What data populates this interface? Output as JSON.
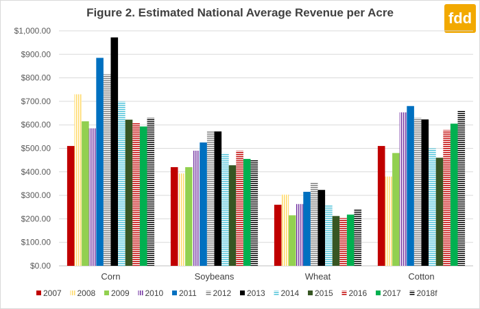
{
  "chart_data": {
    "type": "bar",
    "title": "Figure 2. Estimated National Average Revenue per Acre",
    "categories": [
      "Corn",
      "Soybeans",
      "Wheat",
      "Cotton"
    ],
    "ylim": [
      0,
      1000
    ],
    "yticks": [
      0,
      100,
      200,
      300,
      400,
      500,
      600,
      700,
      800,
      900,
      1000
    ],
    "ytick_labels": [
      "$0.00",
      "$100.00",
      "$200.00",
      "$300.00",
      "$400.00",
      "$500.00",
      "$600.00",
      "$700.00",
      "$800.00",
      "$900.00",
      "$1,000.00"
    ],
    "grid": true,
    "legend_position": "bottom",
    "series": [
      {
        "name": "2007",
        "color": "#c00000",
        "pattern": "solid",
        "values": [
          510,
          420,
          260,
          510
        ]
      },
      {
        "name": "2008",
        "color": "#ffd966",
        "pattern": "vlines",
        "values": [
          730,
          393,
          303,
          380
        ]
      },
      {
        "name": "2009",
        "color": "#92d050",
        "pattern": "solid",
        "values": [
          615,
          420,
          215,
          480
        ]
      },
      {
        "name": "2010",
        "color": "#7030a0",
        "pattern": "vlines",
        "values": [
          585,
          490,
          263,
          653
        ]
      },
      {
        "name": "2011",
        "color": "#0070c0",
        "pattern": "solid",
        "values": [
          885,
          525,
          315,
          680
        ]
      },
      {
        "name": "2012",
        "color": "#808080",
        "pattern": "hlines",
        "values": [
          815,
          572,
          355,
          630
        ]
      },
      {
        "name": "2013",
        "color": "#000000",
        "pattern": "solid",
        "values": [
          972,
          572,
          323,
          623
        ]
      },
      {
        "name": "2014",
        "color": "#4fc3d9",
        "pattern": "hlines",
        "values": [
          700,
          480,
          257,
          500
        ]
      },
      {
        "name": "2015",
        "color": "#375623",
        "pattern": "solid",
        "values": [
          622,
          428,
          212,
          460
        ]
      },
      {
        "name": "2016",
        "color": "#c00000",
        "pattern": "hlines",
        "values": [
          608,
          490,
          203,
          578
        ]
      },
      {
        "name": "2017",
        "color": "#00b050",
        "pattern": "solid",
        "values": [
          593,
          455,
          218,
          605
        ]
      },
      {
        "name": "2018f",
        "color": "#000000",
        "pattern": "hlines",
        "values": [
          630,
          450,
          240,
          660
        ]
      }
    ]
  },
  "logo": {
    "text": "fdd"
  }
}
